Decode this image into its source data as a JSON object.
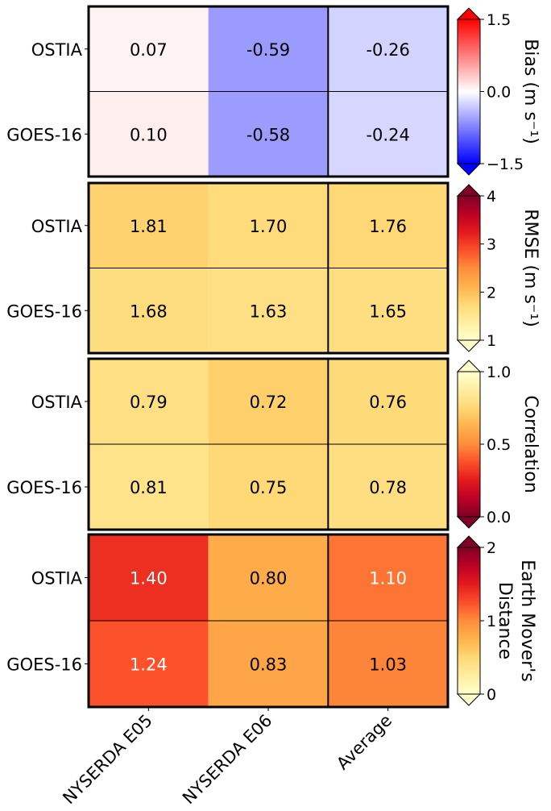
{
  "chart_data": [
    {
      "type": "heatmap",
      "metric_key": "bias",
      "rows": [
        "OSTIA",
        "GOES-16"
      ],
      "columns": [
        "NYSERDA E05",
        "NYSERDA E06",
        "Average"
      ],
      "values": [
        [
          "0.07",
          "-0.59",
          "-0.26"
        ],
        [
          "0.10",
          "-0.58",
          "-0.24"
        ]
      ],
      "colorbar": {
        "label": "Bias (m s⁻¹)",
        "label_lines": [
          "Bias (m s⁻¹)"
        ],
        "cmap": "bwr",
        "range": [
          -1.5,
          1.5
        ],
        "ticks": [
          "−1.5",
          "0.0",
          "1.5"
        ],
        "tick_values": [
          -1.5,
          0,
          1.5
        ]
      }
    },
    {
      "type": "heatmap",
      "metric_key": "rmse",
      "rows": [
        "OSTIA",
        "GOES-16"
      ],
      "columns": [
        "NYSERDA E05",
        "NYSERDA E06",
        "Average"
      ],
      "values": [
        [
          "1.81",
          "1.70",
          "1.76"
        ],
        [
          "1.68",
          "1.63",
          "1.65"
        ]
      ],
      "colorbar": {
        "label": "RMSE (m s⁻¹)",
        "label_lines": [
          "RMSE (m s⁻¹)"
        ],
        "cmap": "YlOrRd",
        "range": [
          1,
          4
        ],
        "ticks": [
          "1",
          "2",
          "3",
          "4"
        ],
        "tick_values": [
          1,
          2,
          3,
          4
        ]
      }
    },
    {
      "type": "heatmap",
      "metric_key": "correlation",
      "rows": [
        "OSTIA",
        "GOES-16"
      ],
      "columns": [
        "NYSERDA E05",
        "NYSERDA E06",
        "Average"
      ],
      "values": [
        [
          "0.79",
          "0.72",
          "0.76"
        ],
        [
          "0.81",
          "0.75",
          "0.78"
        ]
      ],
      "colorbar": {
        "label": "Correlation",
        "label_lines": [
          "Correlation"
        ],
        "cmap": "YlOrRd_r",
        "range": [
          0,
          1
        ],
        "ticks": [
          "0.0",
          "0.5",
          "1.0"
        ],
        "tick_values": [
          0,
          0.5,
          1
        ]
      }
    },
    {
      "type": "heatmap",
      "metric_key": "emd",
      "rows": [
        "OSTIA",
        "GOES-16"
      ],
      "columns": [
        "NYSERDA E05",
        "NYSERDA E06",
        "Average"
      ],
      "values": [
        [
          "1.40",
          "0.80",
          "1.10"
        ],
        [
          "1.24",
          "0.83",
          "1.03"
        ]
      ],
      "colorbar": {
        "label": "Earth Mover's Distance",
        "label_lines": [
          "Earth Mover's",
          "Distance"
        ],
        "cmap": "YlOrRd",
        "range": [
          0,
          2
        ],
        "ticks": [
          "0",
          "1",
          "2"
        ],
        "tick_values": [
          0,
          1,
          2
        ]
      }
    }
  ],
  "colors": {
    "frame": "#000000",
    "text_dark": "#000000",
    "text_light": "#ffffff"
  }
}
